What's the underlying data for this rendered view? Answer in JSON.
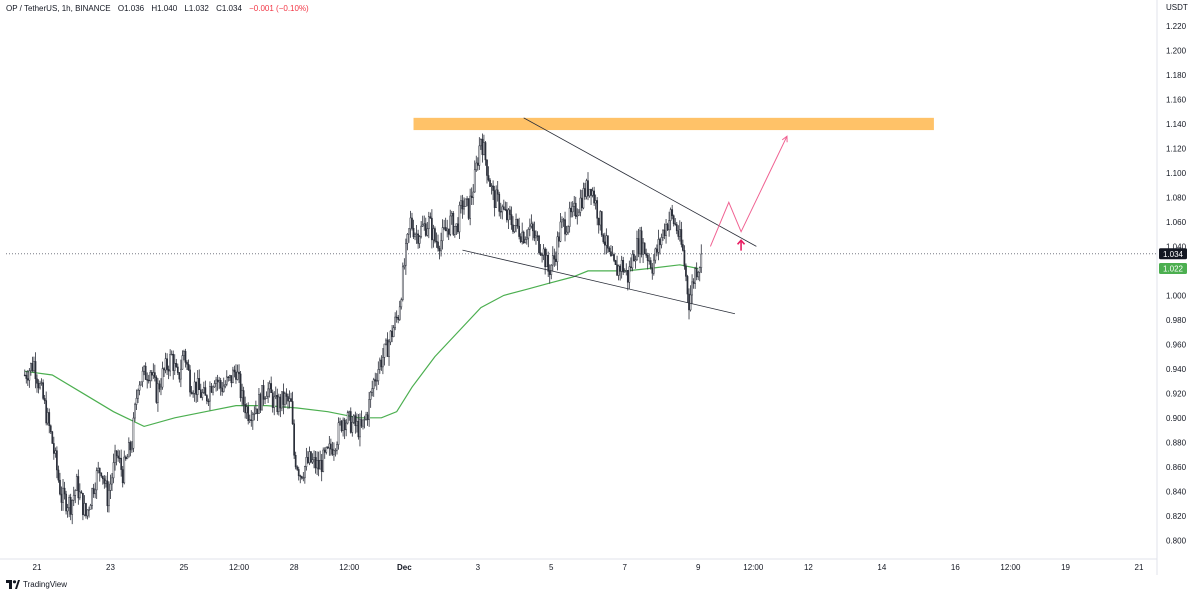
{
  "header": {
    "symbol": "OP / TetherUS, 1h, BINANCE",
    "open": "O1.036",
    "high": "H1.040",
    "low": "L1.032",
    "close": "C1.034",
    "change": "−0.001 (−0.10%)"
  },
  "footer": {
    "brand": "TradingView"
  },
  "colors": {
    "candle": "#2a2e39",
    "ma": "#4caf50",
    "zone": "#ffb74d",
    "trendline": "#2a2e39",
    "projection": "#f06292",
    "price_tag": "#131722",
    "ma_tag": "#4caf50"
  },
  "chart_data": {
    "type": "candlestick",
    "title": "OP / TetherUS, 1h, BINANCE",
    "y_axis_unit": "USDT",
    "ylim": [
      0.795,
      1.235
    ],
    "y_ticks": [
      "1.220",
      "1.200",
      "1.180",
      "1.160",
      "1.140",
      "1.120",
      "1.100",
      "1.080",
      "1.060",
      "1.040",
      "1.020",
      "1.000",
      "0.980",
      "0.960",
      "0.940",
      "0.920",
      "0.900",
      "0.880",
      "0.860",
      "0.840",
      "0.820",
      "0.800"
    ],
    "xlim_hours": [
      -8,
      1050
    ],
    "x_ticks": [
      {
        "label": "21",
        "h": 0
      },
      {
        "label": "23",
        "h": 48
      },
      {
        "label": "25",
        "h": 96
      },
      {
        "label": "12:00",
        "h": 132
      },
      {
        "label": "28",
        "h": 168
      },
      {
        "label": "12:00",
        "h": 204
      },
      {
        "label": "Dec",
        "h": 240
      },
      {
        "label": "3",
        "h": 288
      },
      {
        "label": "5",
        "h": 336
      },
      {
        "label": "7",
        "h": 384
      },
      {
        "label": "9",
        "h": 432
      },
      {
        "label": "12:00",
        "h": 468
      },
      {
        "label": "12",
        "h": 504
      },
      {
        "label": "14",
        "h": 552
      },
      {
        "label": "16",
        "h": 600
      },
      {
        "label": "12:00",
        "h": 636
      },
      {
        "label": "19",
        "h": 672
      },
      {
        "label": "21",
        "h": 720
      }
    ],
    "price_path_hours_close": [
      [
        -8,
        0.935
      ],
      [
        -2,
        0.945
      ],
      [
        4,
        0.915
      ],
      [
        10,
        0.88
      ],
      [
        16,
        0.835
      ],
      [
        22,
        0.83
      ],
      [
        26,
        0.845
      ],
      [
        32,
        0.82
      ],
      [
        38,
        0.85
      ],
      [
        42,
        0.86
      ],
      [
        46,
        0.835
      ],
      [
        52,
        0.87
      ],
      [
        56,
        0.855
      ],
      [
        62,
        0.88
      ],
      [
        66,
        0.93
      ],
      [
        70,
        0.935
      ],
      [
        74,
        0.94
      ],
      [
        78,
        0.92
      ],
      [
        82,
        0.935
      ],
      [
        88,
        0.95
      ],
      [
        92,
        0.93
      ],
      [
        96,
        0.955
      ],
      [
        100,
        0.93
      ],
      [
        104,
        0.925
      ],
      [
        110,
        0.915
      ],
      [
        116,
        0.935
      ],
      [
        120,
        0.925
      ],
      [
        126,
        0.93
      ],
      [
        130,
        0.94
      ],
      [
        134,
        0.915
      ],
      [
        138,
        0.905
      ],
      [
        144,
        0.91
      ],
      [
        150,
        0.925
      ],
      [
        156,
        0.91
      ],
      [
        162,
        0.915
      ],
      [
        166,
        0.91
      ],
      [
        168,
        0.87
      ],
      [
        172,
        0.855
      ],
      [
        178,
        0.865
      ],
      [
        184,
        0.86
      ],
      [
        190,
        0.87
      ],
      [
        196,
        0.885
      ],
      [
        200,
        0.9
      ],
      [
        206,
        0.895
      ],
      [
        212,
        0.89
      ],
      [
        216,
        0.905
      ],
      [
        220,
        0.93
      ],
      [
        224,
        0.945
      ],
      [
        228,
        0.955
      ],
      [
        232,
        0.97
      ],
      [
        236,
        0.985
      ],
      [
        240,
        1.025
      ],
      [
        244,
        1.06
      ],
      [
        248,
        1.05
      ],
      [
        252,
        1.055
      ],
      [
        256,
        1.06
      ],
      [
        260,
        1.045
      ],
      [
        264,
        1.045
      ],
      [
        270,
        1.06
      ],
      [
        274,
        1.055
      ],
      [
        278,
        1.075
      ],
      [
        282,
        1.07
      ],
      [
        286,
        1.095
      ],
      [
        290,
        1.13
      ],
      [
        294,
        1.105
      ],
      [
        298,
        1.08
      ],
      [
        302,
        1.075
      ],
      [
        306,
        1.065
      ],
      [
        310,
        1.06
      ],
      [
        314,
        1.055
      ],
      [
        318,
        1.05
      ],
      [
        322,
        1.055
      ],
      [
        326,
        1.045
      ],
      [
        330,
        1.04
      ],
      [
        334,
        1.02
      ],
      [
        338,
        1.03
      ],
      [
        342,
        1.055
      ],
      [
        346,
        1.06
      ],
      [
        350,
        1.065
      ],
      [
        354,
        1.075
      ],
      [
        358,
        1.085
      ],
      [
        362,
        1.09
      ],
      [
        366,
        1.07
      ],
      [
        370,
        1.05
      ],
      [
        374,
        1.03
      ],
      [
        378,
        1.02
      ],
      [
        382,
        1.025
      ],
      [
        386,
        1.015
      ],
      [
        390,
        1.035
      ],
      [
        394,
        1.045
      ],
      [
        398,
        1.035
      ],
      [
        402,
        1.025
      ],
      [
        406,
        1.04
      ],
      [
        410,
        1.055
      ],
      [
        414,
        1.065
      ],
      [
        418,
        1.055
      ],
      [
        422,
        1.035
      ],
      [
        426,
        0.995
      ],
      [
        430,
        1.02
      ],
      [
        434,
        1.03
      ]
    ],
    "series": [
      {
        "name": "MA",
        "values_hours": [
          [
            -8,
            0.938
          ],
          [
            10,
            0.935
          ],
          [
            30,
            0.92
          ],
          [
            50,
            0.905
          ],
          [
            70,
            0.893
          ],
          [
            90,
            0.9
          ],
          [
            110,
            0.905
          ],
          [
            130,
            0.91
          ],
          [
            150,
            0.91
          ],
          [
            170,
            0.908
          ],
          [
            190,
            0.905
          ],
          [
            210,
            0.9
          ],
          [
            225,
            0.9
          ],
          [
            235,
            0.905
          ],
          [
            245,
            0.925
          ],
          [
            260,
            0.95
          ],
          [
            275,
            0.97
          ],
          [
            290,
            0.99
          ],
          [
            305,
            1.0
          ],
          [
            320,
            1.005
          ],
          [
            335,
            1.01
          ],
          [
            350,
            1.015
          ],
          [
            360,
            1.02
          ],
          [
            370,
            1.02
          ],
          [
            385,
            1.02
          ],
          [
            400,
            1.022
          ],
          [
            420,
            1.025
          ],
          [
            432,
            1.022
          ]
        ]
      }
    ],
    "last_price": "1.034",
    "ma_value": "1.022",
    "annotations": {
      "resistance_zone": {
        "y_top": 1.145,
        "y_bottom": 1.135,
        "h_start": 246,
        "h_end": 586
      },
      "upper_trendline": {
        "h1": 318,
        "y1": 1.145,
        "h2": 470,
        "y2": 1.04
      },
      "lower_trendline": {
        "h1": 278,
        "y1": 1.037,
        "h2": 456,
        "y2": 0.985
      },
      "projection_path": [
        [
          440,
          1.04
        ],
        [
          452,
          1.076
        ],
        [
          460,
          1.052
        ],
        [
          490,
          1.13
        ]
      ],
      "up_arrow": {
        "h": 460,
        "y_tip": 1.045,
        "y_base": 1.039
      },
      "dotted_price_line": 1.034
    }
  }
}
